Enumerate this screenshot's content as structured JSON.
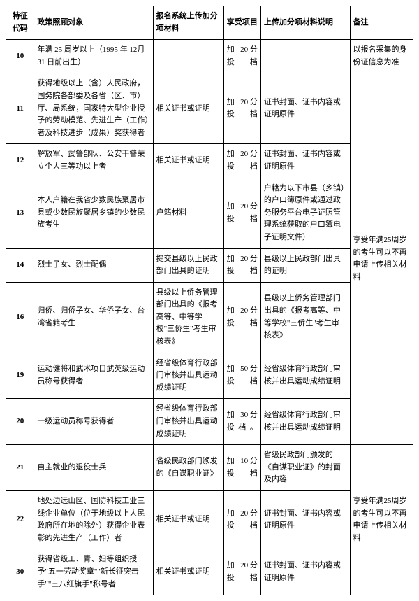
{
  "headers": {
    "code": "特征代码",
    "target": "政策照顾对象",
    "material": "报名系统上传加分项材料",
    "benefit": "享受项目",
    "explain": "上传加分项材料说明",
    "remark": "备注"
  },
  "remarks": {
    "r1": "以报名采集的身份证信息为准",
    "r2": "享受年满25周岁的考生可以不再申请上传相关材料",
    "r3": "享受年满25周岁的考生可以不再申请上传相关材料"
  },
  "rows": [
    {
      "code": "10",
      "target": "年满 25 周岁以上（1995 年 12月 31 日前出生）",
      "material": "",
      "benefit": "加 20分投档",
      "explain": ""
    },
    {
      "code": "11",
      "target": "获得地级以上（含）人民政府，国务院各部委及各省（区、市）厅、局系统，国家特大型企业授予的劳动模范、先进生产（工作）者及科技进步（成果）奖获得者",
      "material": "相关证书或证明",
      "benefit": "加 20分投档",
      "explain": "证书封面、证书内容或证明原件"
    },
    {
      "code": "12",
      "target": "解放军、武警部队、公安干警荣立个人三等功以上者",
      "material": "相关证书或证明",
      "benefit": "加 20分投档",
      "explain": "证书封面、证书内容或证明原件"
    },
    {
      "code": "13",
      "target": "本人户籍在我省少数民族聚居市县或少数民族聚居乡镇的少数民族考生",
      "material": "户籍材料",
      "benefit": "加 20分投档",
      "explain": "户籍为以下市县（乡镇）的户口簿原件或通过政务服务平台电子证照管理系统获取的户口簿电子证明文件）"
    },
    {
      "code": "14",
      "target": "烈士子女、烈士配偶",
      "material": "提交县级以上民政部门出具的证明",
      "benefit": "加 20分投档",
      "explain": "县级以上民政部门出具的证明"
    },
    {
      "code": "16",
      "target": "归侨、归侨子女、华侨子女、台湾省籍考生",
      "material": "县级以上侨务管理部门出具的《报考高等、中等学校\"三侨生\"考生审核表》",
      "benefit": "加 20分投档",
      "explain": "县级以上侨务管理部门出具的《报考高等、中等学校\"三侨生\"考生审核表》"
    },
    {
      "code": "19",
      "target": "运动健将和武术项目武英级运动员称号获得者",
      "material": "经省级体育行政部门审核并出具运动成绩证明",
      "benefit": "加 50分投档",
      "explain": "经省级体育行政部门审核并出具运动成绩证明"
    },
    {
      "code": "20",
      "target": "一级运动员称号获得者",
      "material": "经省级体育行政部门审核并出具运动成绩证明",
      "benefit": "加 30分 投档。",
      "explain": "经省级体育行政部门审核并出具运动成绩证明"
    },
    {
      "code": "21",
      "target": "自主就业的退役士兵",
      "material": "省级民政部门颁发的《自谋职业证》",
      "benefit": "加 10分投档",
      "explain": "省级民政部门颁发的《自谋职业证》的封面及内容"
    },
    {
      "code": "22",
      "target": "地处边远山区、国防科技工业三线企业单位（位于地级以上人民政府所在地的除外）获得企业表彰的先进生产（工作）者",
      "material": "相关证书或证明",
      "benefit": "加 20分投档",
      "explain": "证书封面、证书内容或证明原件"
    },
    {
      "code": "30",
      "target": "获得省级工、青、妇等组织授予\"五一劳动奖章\"\"新长征突击手\"\"三八红旗手\"称号者",
      "material": "相关证书或证明",
      "benefit": "加 20分投档",
      "explain": "证书封面、证书内容或证明原件"
    }
  ]
}
